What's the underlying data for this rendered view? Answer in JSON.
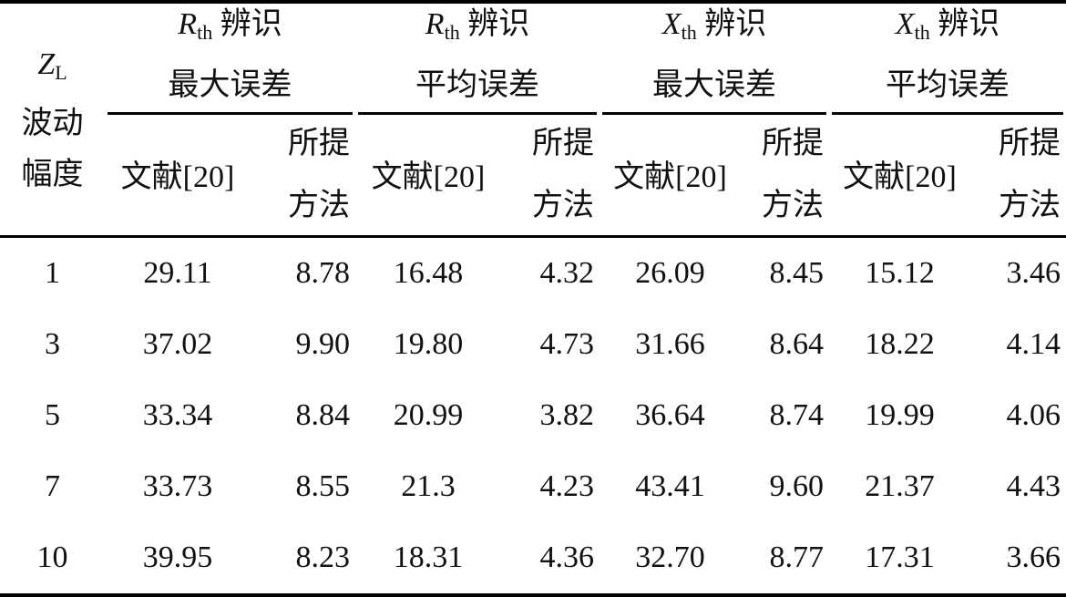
{
  "header": {
    "row_label": {
      "var": "Z",
      "sub": "L",
      "line2": "波动",
      "line3": "幅度"
    },
    "groups": [
      {
        "var": "R",
        "sub": "th",
        "label": "辨识",
        "line2": "最大误差"
      },
      {
        "var": "R",
        "sub": "th",
        "label": "辨识",
        "line2": "平均误差"
      },
      {
        "var": "X",
        "sub": "th",
        "label": "辨识",
        "line2": "最大误差"
      },
      {
        "var": "X",
        "sub": "th",
        "label": "辨识",
        "line2": "平均误差"
      }
    ],
    "sub_ref": "文献[20]",
    "sub_proposed_1": "所提",
    "sub_proposed_2": "方法"
  },
  "rows": [
    [
      "1",
      "29.11",
      "8.78",
      "16.48",
      "4.32",
      "26.09",
      "8.45",
      "15.12",
      "3.46"
    ],
    [
      "3",
      "37.02",
      "9.90",
      "19.80",
      "4.73",
      "31.66",
      "8.64",
      "18.22",
      "4.14"
    ],
    [
      "5",
      "33.34",
      "8.84",
      "20.99",
      "3.82",
      "36.64",
      "8.74",
      "19.99",
      "4.06"
    ],
    [
      "7",
      "33.73",
      "8.55",
      "21.3",
      "4.23",
      "43.41",
      "9.60",
      "21.37",
      "4.43"
    ],
    [
      "10",
      "39.95",
      "8.23",
      "18.31",
      "4.36",
      "32.70",
      "8.77",
      "17.31",
      "3.66"
    ]
  ]
}
